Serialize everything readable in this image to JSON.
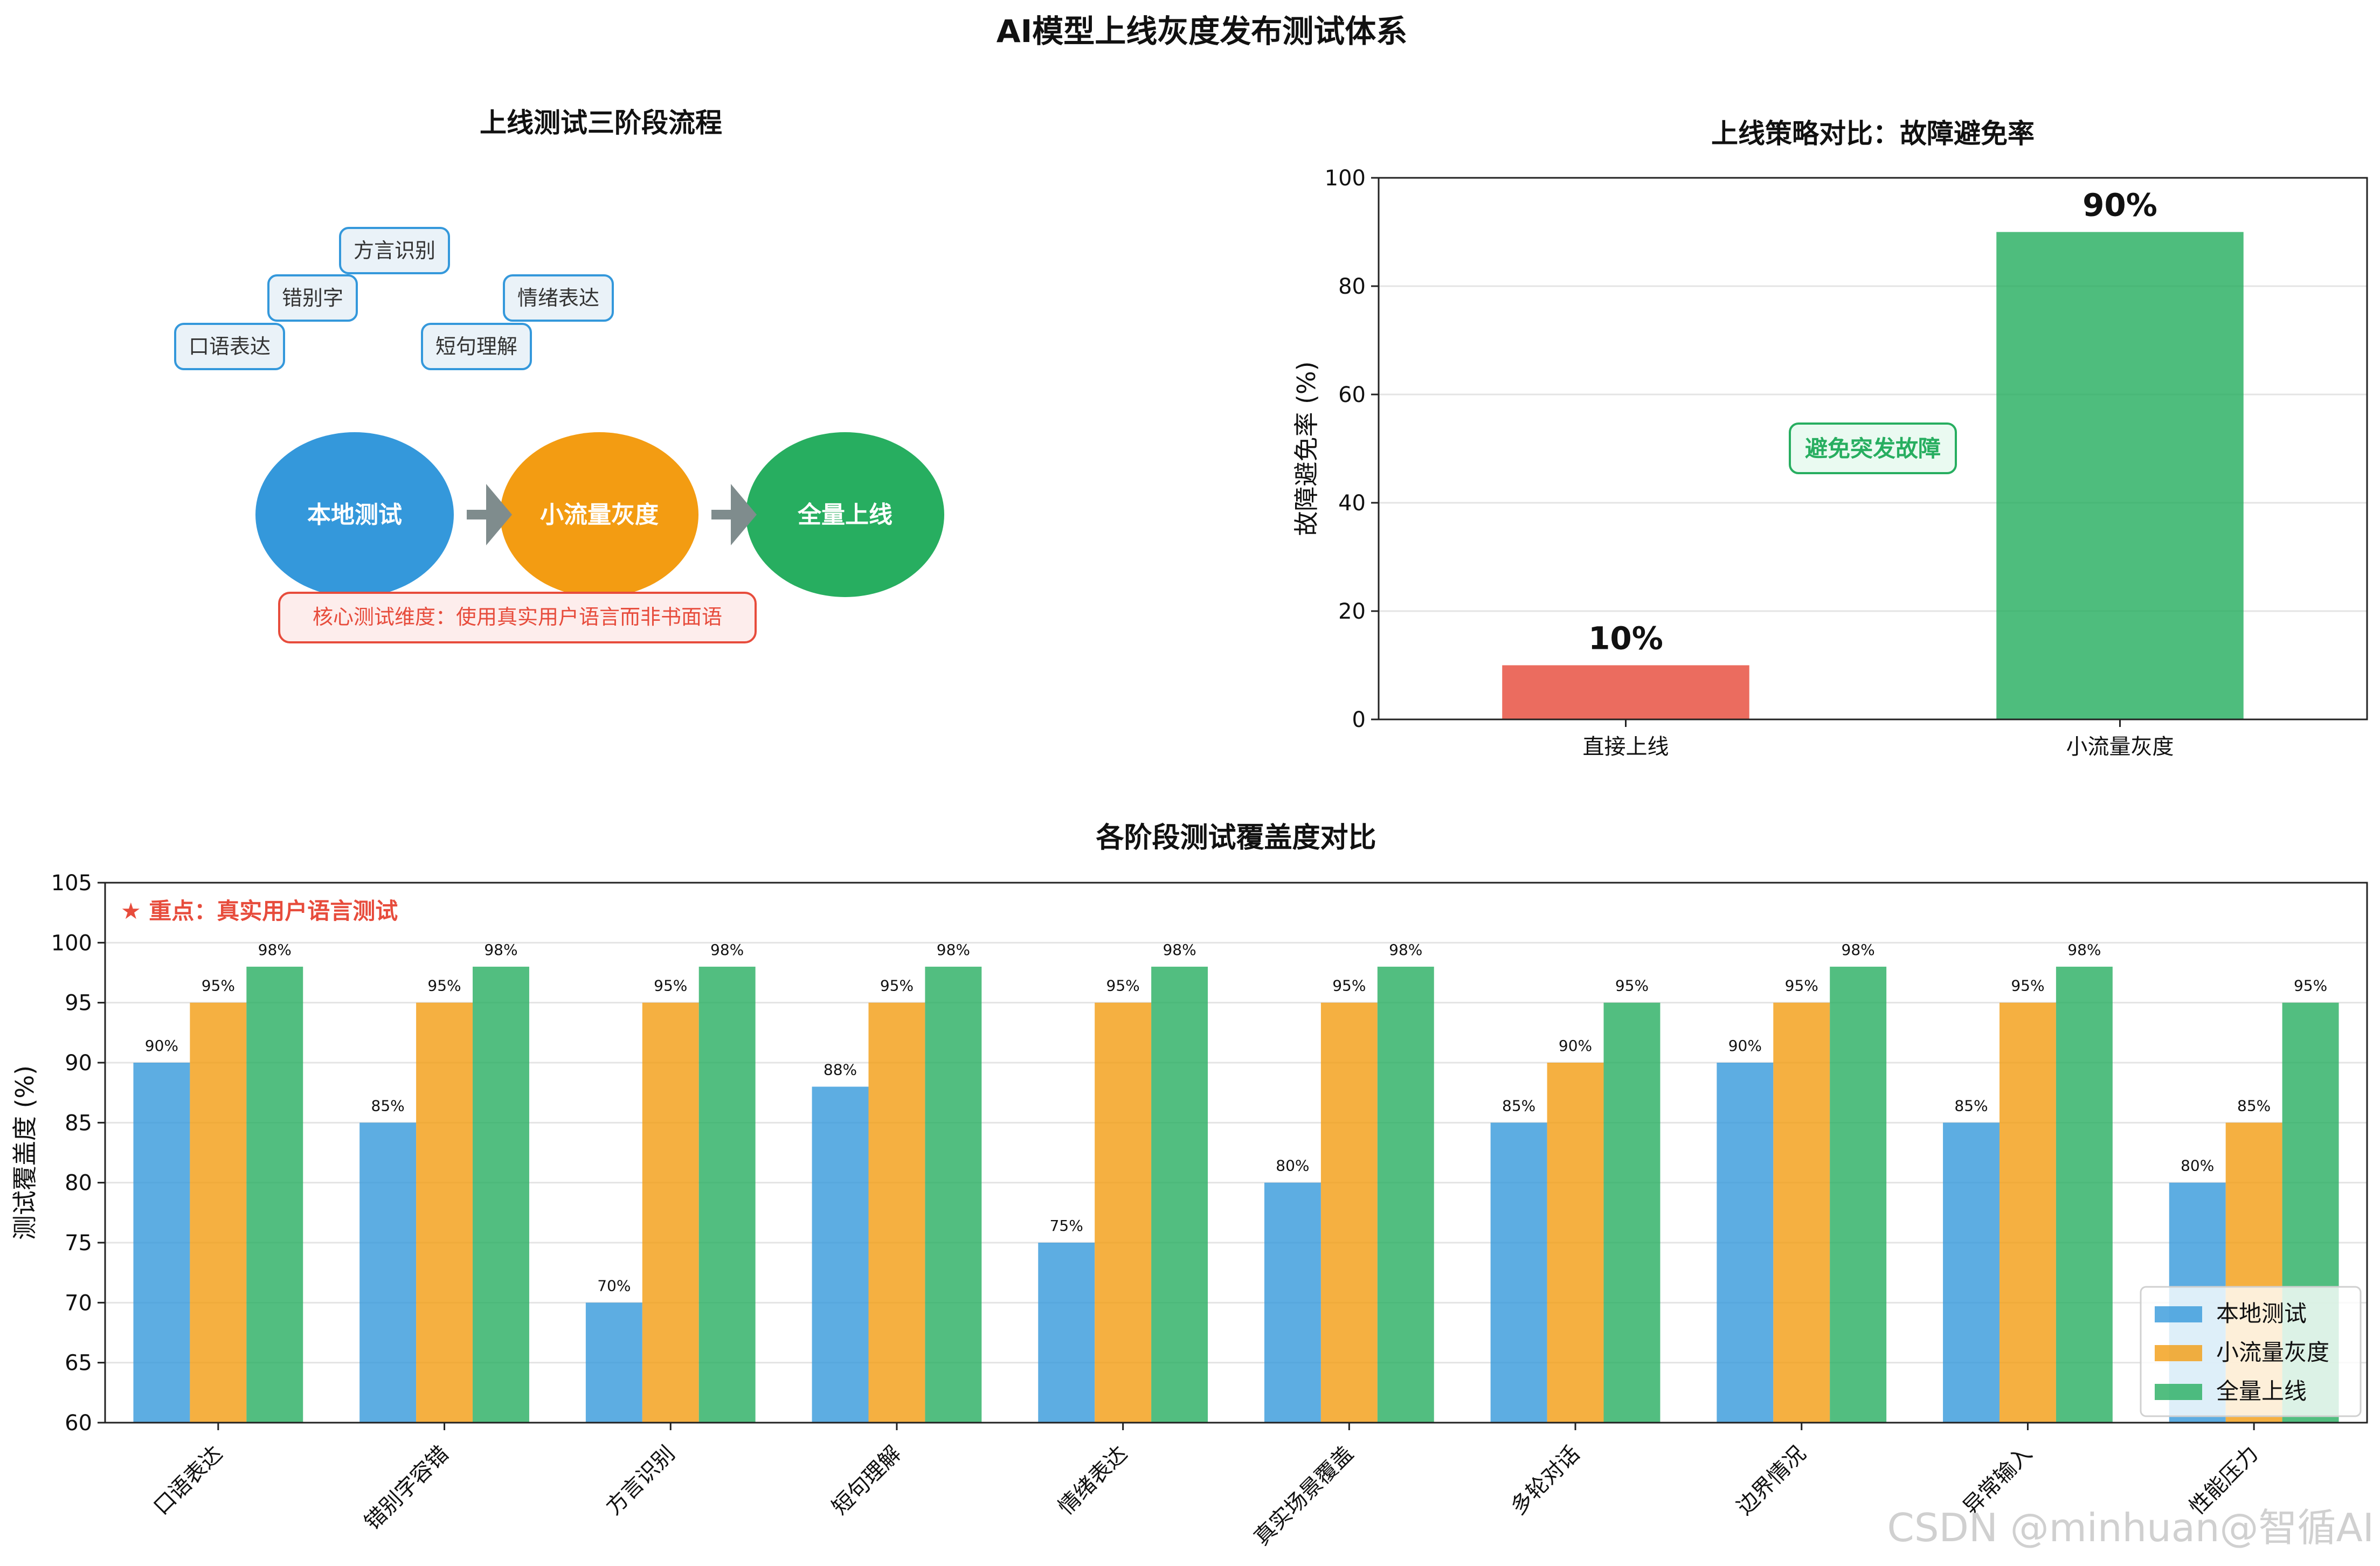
{
  "figure": {
    "title": "AI模型上线灰度发布测试体系",
    "watermark": "CSDN @minhuan@智循AI"
  },
  "flow_panel": {
    "title": "上线测试三阶段流程",
    "language_tags": [
      "方言识别",
      "错别字",
      "情绪表达",
      "口语表达",
      "短句理解"
    ],
    "stages": [
      {
        "label": "本地测试",
        "color": "#3498db"
      },
      {
        "label": "小流量灰度",
        "color": "#f39c12"
      },
      {
        "label": "全量上线",
        "color": "#27ae60"
      }
    ],
    "core_note": "核心测试维度：使用真实用户语言而非书面语",
    "colors": {
      "tag_border": "#3498db",
      "tag_fill": "#eaf2f8",
      "note_border": "#e74c3c",
      "note_text": "#e74c3c",
      "arrow": "#7f8c8d"
    }
  },
  "chart_data": [
    {
      "type": "bar",
      "title": "上线策略对比：故障避免率",
      "xlabel": "",
      "ylabel": "故障避免率 (%)",
      "categories": [
        "直接上线",
        "小流量灰度"
      ],
      "values": [
        10,
        90
      ],
      "value_labels": [
        "10%",
        "90%"
      ],
      "colors": [
        "#e74c3c",
        "#27ae60"
      ],
      "ylim": [
        0,
        100
      ],
      "yticks": [
        0,
        20,
        40,
        60,
        80,
        100
      ],
      "grid": true,
      "annotation": "避免突发故障",
      "annotation_color": "#27ae60"
    },
    {
      "type": "bar",
      "title": "各阶段测试覆盖度对比",
      "xlabel": "",
      "ylabel": "测试覆盖度 (%)",
      "categories": [
        "口语表达",
        "错别字容错",
        "方言识别",
        "短句理解",
        "情绪表达",
        "真实场景覆盖",
        "多轮对话",
        "边界情况",
        "异常输入",
        "性能压力"
      ],
      "series": [
        {
          "name": "本地测试",
          "color": "#3498db",
          "values": [
            90,
            85,
            70,
            88,
            75,
            80,
            85,
            90,
            85,
            80
          ]
        },
        {
          "name": "小流量灰度",
          "color": "#f39c12",
          "values": [
            95,
            95,
            95,
            95,
            95,
            95,
            90,
            95,
            95,
            85
          ]
        },
        {
          "name": "全量上线",
          "color": "#27ae60",
          "values": [
            98,
            98,
            98,
            98,
            98,
            98,
            95,
            98,
            98,
            95
          ]
        }
      ],
      "ylim": [
        60,
        105
      ],
      "yticks": [
        60,
        65,
        70,
        75,
        80,
        85,
        90,
        95,
        100,
        105
      ],
      "grid": true,
      "legend": "lower-right",
      "annotation": "★ 重点：真实用户语言测试",
      "annotation_color": "#e74c3c"
    }
  ]
}
